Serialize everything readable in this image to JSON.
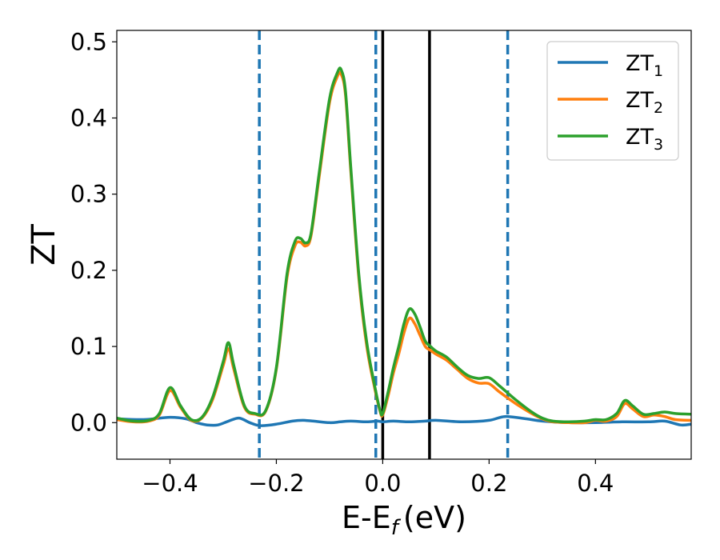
{
  "chart_data": {
    "type": "line",
    "xlabel": "E-E",
    "xlabel_sub": "f",
    "xlabel_unit": "(eV)",
    "ylabel": "ZT",
    "xlim": [
      -0.5,
      0.58
    ],
    "ylim": [
      -0.048,
      0.515
    ],
    "xticks": [
      -0.4,
      -0.2,
      0.0,
      0.2,
      0.4
    ],
    "xtick_labels": [
      "−0.4",
      "−0.2",
      "0.0",
      "0.2",
      "0.4"
    ],
    "yticks": [
      0.0,
      0.1,
      0.2,
      0.3,
      0.4,
      0.5
    ],
    "ytick_labels": [
      "0.0",
      "0.1",
      "0.2",
      "0.3",
      "0.4",
      "0.5"
    ],
    "grid": false,
    "legend_position": "top-right",
    "vlines_dashed": [
      -0.232,
      -0.013,
      0.235
    ],
    "vlines_solid": [
      0.0,
      0.088
    ],
    "series": [
      {
        "name": "ZT",
        "sub": "1",
        "color": "#1f77b4",
        "x": [
          -0.5,
          -0.45,
          -0.4,
          -0.37,
          -0.35,
          -0.33,
          -0.31,
          -0.29,
          -0.27,
          -0.25,
          -0.23,
          -0.2,
          -0.17,
          -0.15,
          -0.13,
          -0.1,
          -0.08,
          -0.06,
          -0.03,
          -0.01,
          0.0,
          0.02,
          0.05,
          0.08,
          0.1,
          0.15,
          0.2,
          0.23,
          0.27,
          0.3,
          0.35,
          0.4,
          0.45,
          0.5,
          0.53,
          0.56,
          0.58
        ],
        "y": [
          0.005,
          0.004,
          0.007,
          0.005,
          0.0,
          -0.003,
          -0.003,
          0.002,
          0.006,
          0.0,
          -0.004,
          -0.002,
          0.002,
          0.003,
          0.002,
          0.0,
          0.001,
          0.002,
          0.001,
          0.002,
          0.001,
          0.002,
          0.001,
          0.002,
          0.003,
          0.001,
          0.003,
          0.008,
          0.005,
          0.002,
          0.0,
          0.0,
          0.001,
          0.001,
          0.002,
          -0.003,
          -0.002
        ]
      },
      {
        "name": "ZT",
        "sub": "2",
        "color": "#ff7f0e",
        "x": [
          -0.5,
          -0.47,
          -0.44,
          -0.42,
          -0.4,
          -0.38,
          -0.36,
          -0.34,
          -0.32,
          -0.3,
          -0.29,
          -0.28,
          -0.26,
          -0.24,
          -0.22,
          -0.2,
          -0.18,
          -0.165,
          -0.155,
          -0.145,
          -0.135,
          -0.12,
          -0.1,
          -0.085,
          -0.078,
          -0.07,
          -0.06,
          -0.045,
          -0.03,
          -0.015,
          -0.005,
          0.0,
          0.01,
          0.02,
          0.03,
          0.04,
          0.05,
          0.06,
          0.07,
          0.08,
          0.09,
          0.1,
          0.12,
          0.14,
          0.16,
          0.18,
          0.2,
          0.22,
          0.25,
          0.28,
          0.3,
          0.32,
          0.35,
          0.38,
          0.4,
          0.42,
          0.44,
          0.455,
          0.47,
          0.49,
          0.51,
          0.53,
          0.55,
          0.58
        ],
        "y": [
          0.004,
          0.001,
          0.002,
          0.01,
          0.042,
          0.02,
          0.003,
          0.006,
          0.03,
          0.075,
          0.097,
          0.07,
          0.02,
          0.011,
          0.015,
          0.07,
          0.19,
          0.232,
          0.237,
          0.232,
          0.245,
          0.32,
          0.42,
          0.455,
          0.457,
          0.43,
          0.33,
          0.19,
          0.1,
          0.045,
          0.015,
          0.01,
          0.035,
          0.065,
          0.09,
          0.118,
          0.137,
          0.13,
          0.115,
          0.1,
          0.095,
          0.09,
          0.082,
          0.07,
          0.058,
          0.052,
          0.051,
          0.04,
          0.025,
          0.012,
          0.005,
          0.001,
          0.0,
          0.0,
          0.003,
          0.002,
          0.008,
          0.025,
          0.018,
          0.008,
          0.01,
          0.008,
          0.004,
          0.003
        ]
      },
      {
        "name": "ZT",
        "sub": "3",
        "color": "#2ca02c",
        "x": [
          -0.5,
          -0.47,
          -0.44,
          -0.42,
          -0.4,
          -0.38,
          -0.36,
          -0.34,
          -0.32,
          -0.3,
          -0.29,
          -0.28,
          -0.26,
          -0.24,
          -0.22,
          -0.2,
          -0.18,
          -0.165,
          -0.155,
          -0.145,
          -0.135,
          -0.12,
          -0.1,
          -0.085,
          -0.078,
          -0.07,
          -0.06,
          -0.045,
          -0.03,
          -0.015,
          -0.005,
          0.0,
          0.01,
          0.02,
          0.03,
          0.04,
          0.05,
          0.06,
          0.07,
          0.08,
          0.09,
          0.1,
          0.12,
          0.14,
          0.16,
          0.18,
          0.2,
          0.22,
          0.25,
          0.28,
          0.3,
          0.32,
          0.35,
          0.38,
          0.4,
          0.42,
          0.44,
          0.455,
          0.47,
          0.49,
          0.51,
          0.53,
          0.55,
          0.58
        ],
        "y": [
          0.006,
          0.002,
          0.003,
          0.012,
          0.046,
          0.022,
          0.004,
          0.007,
          0.033,
          0.08,
          0.105,
          0.075,
          0.022,
          0.012,
          0.016,
          0.072,
          0.195,
          0.238,
          0.242,
          0.236,
          0.248,
          0.325,
          0.425,
          0.46,
          0.463,
          0.435,
          0.335,
          0.195,
          0.105,
          0.048,
          0.016,
          0.012,
          0.04,
          0.072,
          0.1,
          0.13,
          0.149,
          0.143,
          0.126,
          0.107,
          0.1,
          0.094,
          0.086,
          0.073,
          0.062,
          0.058,
          0.059,
          0.048,
          0.03,
          0.014,
          0.006,
          0.002,
          0.001,
          0.002,
          0.004,
          0.004,
          0.012,
          0.029,
          0.022,
          0.011,
          0.012,
          0.014,
          0.012,
          0.011
        ]
      }
    ]
  }
}
